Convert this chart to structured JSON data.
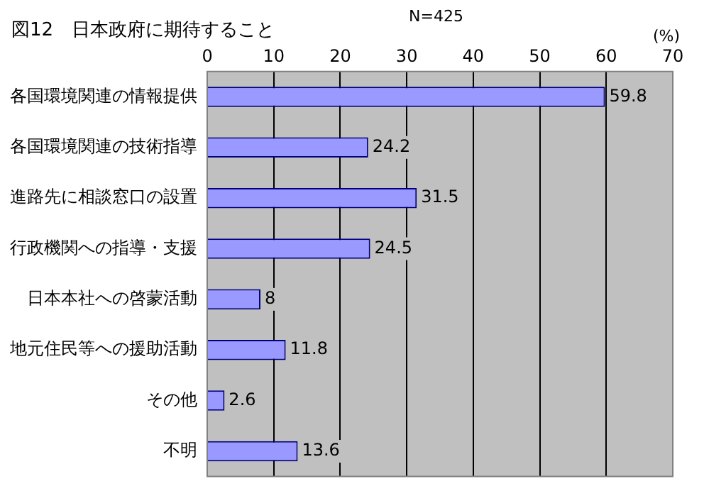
{
  "chart_data": {
    "type": "bar",
    "orientation": "horizontal",
    "title": "図12　日本政府に期待すること",
    "subtitle": "N=425",
    "xlabel": "(%)",
    "categories": [
      "各国環境関連の情報提供",
      "各国環境関連の技術指導",
      "進路先に相談窓口の設置",
      "行政機関への指導・支援",
      "日本本社への啓蒙活動",
      "地元住民等への援助活動",
      "その他",
      "不明"
    ],
    "values": [
      59.8,
      24.2,
      31.5,
      24.5,
      8,
      11.8,
      2.6,
      13.6
    ],
    "color": "#9999ff",
    "xlim": [
      0,
      70
    ],
    "xticks": [
      0,
      10,
      20,
      30,
      40,
      50,
      60,
      70
    ],
    "grid": "x",
    "data_labels": true,
    "legend": false
  }
}
